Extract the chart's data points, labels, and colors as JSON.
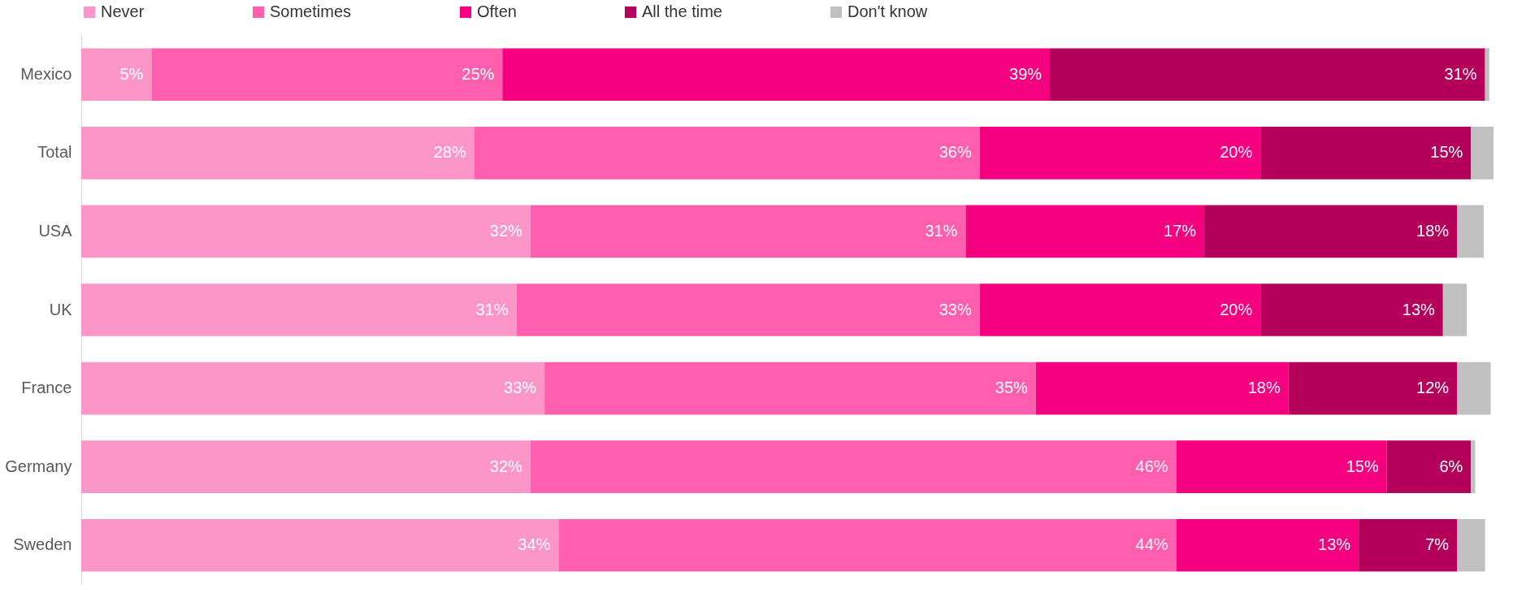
{
  "chart_data": {
    "type": "bar",
    "orientation": "horizontal",
    "stacked": true,
    "legend": "top",
    "categories": [
      "Mexico",
      "Total",
      "USA",
      "UK",
      "France",
      "Germany",
      "Sweden"
    ],
    "series": [
      {
        "name": "Never",
        "color": "#fc96c8",
        "values": [
          5,
          28,
          32,
          31,
          33,
          32,
          34
        ],
        "value_labels": [
          "5%",
          "28%",
          "32%",
          "31%",
          "33%",
          "32%",
          "34%"
        ]
      },
      {
        "name": "Sometimes",
        "color": "#ff5fae",
        "values": [
          25,
          36,
          31,
          33,
          35,
          46,
          44
        ],
        "value_labels": [
          "25%",
          "36%",
          "31%",
          "33%",
          "35%",
          "46%",
          "44%"
        ]
      },
      {
        "name": "Often",
        "color": "#f5007f",
        "values": [
          39,
          20,
          17,
          20,
          18,
          15,
          13
        ],
        "value_labels": [
          "39%",
          "20%",
          "17%",
          "20%",
          "18%",
          "15%",
          "13%"
        ]
      },
      {
        "name": "All the time",
        "color": "#b5005b",
        "values": [
          31,
          15,
          18,
          13,
          12,
          6,
          7
        ],
        "value_labels": [
          "31%",
          "15%",
          "18%",
          "13%",
          "12%",
          "6%",
          "7%"
        ]
      },
      {
        "name": "Don't know",
        "color": "#c0c0c0",
        "values": [
          0.3,
          1.6,
          1.9,
          1.7,
          2.4,
          0.3,
          2.0
        ]
      }
    ]
  }
}
